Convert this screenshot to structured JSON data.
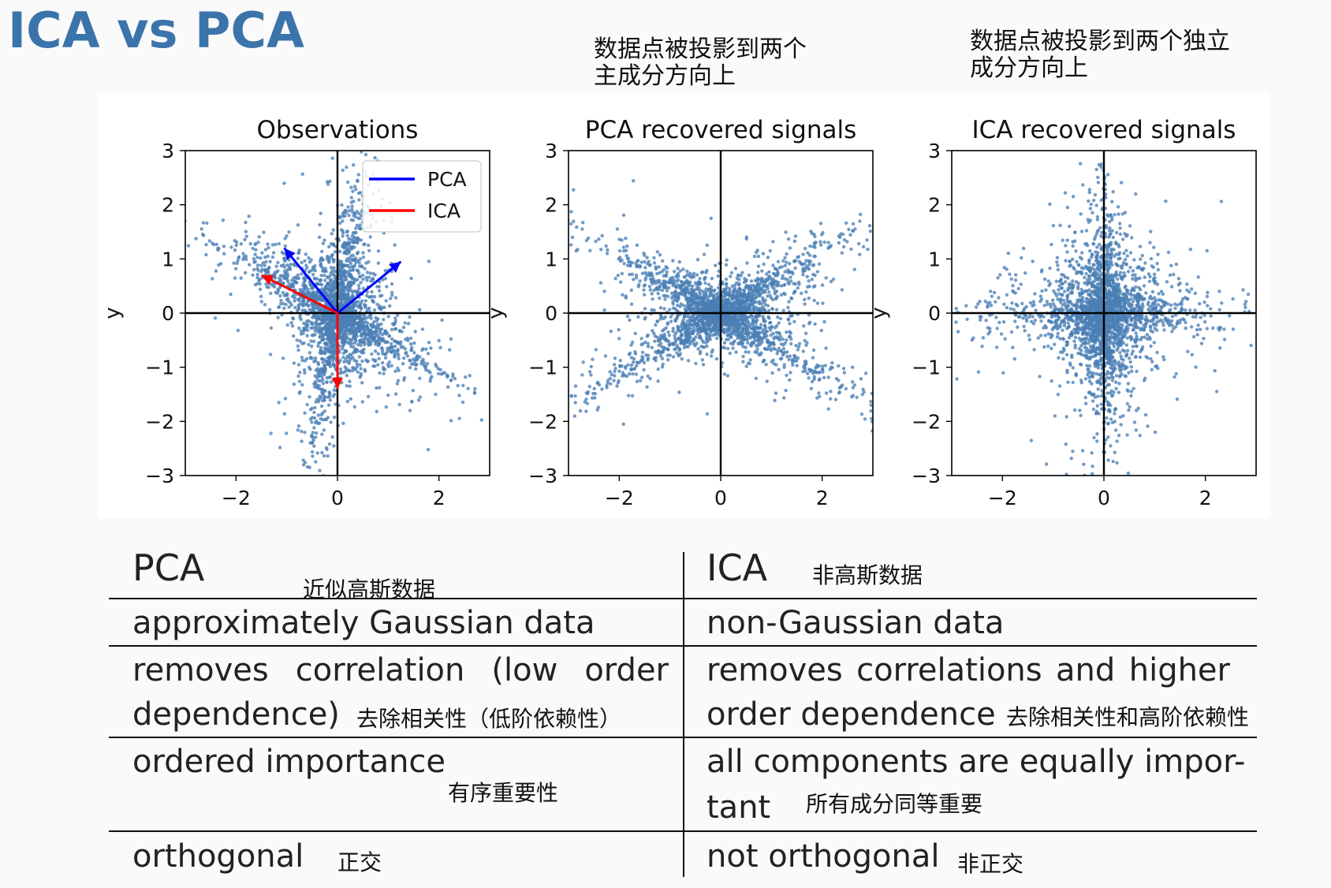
{
  "slide": {
    "title": "ICA vs PCA"
  },
  "notes": {
    "pca_line1": "数据点被投影到两个",
    "pca_line2": "主成分方向上",
    "ica_line1": "数据点被投影到两个独立",
    "ica_line2": "成分方向上"
  },
  "chart_data": [
    {
      "type": "scatter",
      "title": "Observations",
      "xlabel": "",
      "ylabel": "y",
      "xlim": [
        -3,
        3
      ],
      "ylim": [
        -3,
        3
      ],
      "xticks": [
        "−2",
        "0",
        "2"
      ],
      "yticks": [
        "3",
        "2",
        "1",
        "0",
        "−1",
        "−2",
        "−3"
      ],
      "point_color": "#4a7fb5",
      "shape": "rotated-cross",
      "legend": {
        "placement": "top-right",
        "entries": [
          {
            "name": "PCA",
            "color": "#0000ff"
          },
          {
            "name": "ICA",
            "color": "#ff0000"
          }
        ]
      },
      "vectors": [
        {
          "series": "PCA",
          "x": [
            -1.05,
            1.25
          ],
          "y": [
            1.2,
            0.95
          ]
        },
        {
          "series": "ICA",
          "x": [
            -1.5,
            0.0
          ],
          "y": [
            0.7,
            -1.4
          ]
        }
      ]
    },
    {
      "type": "scatter",
      "title": "PCA recovered signals",
      "xlabel": "",
      "ylabel": "y",
      "xlim": [
        -3,
        3
      ],
      "ylim": [
        -3,
        3
      ],
      "xticks": [
        "−2",
        "0",
        "2"
      ],
      "yticks": [
        "3",
        "2",
        "1",
        "0",
        "−1",
        "−2",
        "−3"
      ],
      "point_color": "#4a7fb5",
      "shape": "x-shape"
    },
    {
      "type": "scatter",
      "title": "ICA recovered signals",
      "xlabel": "",
      "ylabel": "y",
      "xlim": [
        -3,
        3
      ],
      "ylim": [
        -3,
        3
      ],
      "xticks": [
        "−2",
        "0",
        "2"
      ],
      "yticks": [
        "3",
        "2",
        "1",
        "0",
        "−1",
        "−2",
        "−3"
      ],
      "point_color": "#4a7fb5",
      "shape": "plus-cross"
    }
  ],
  "table": {
    "header": {
      "pca": "PCA",
      "pca_cn": "近似高斯数据",
      "ica": "ICA",
      "ica_cn": "非高斯数据"
    },
    "rows": [
      {
        "pca": "approximately Gaussian data",
        "ica": "non-Gaussian data"
      },
      {
        "pca_a": "removes correlation (low order",
        "pca_b": "dependence)",
        "pca_cn": "去除相关性（低阶依赖性）",
        "ica_a": "removes correlations and higher",
        "ica_b": "order dependence",
        "ica_cn": "去除相关性和高阶依赖性"
      },
      {
        "pca": "ordered importance",
        "pca_cn": "有序重要性",
        "ica_a": "all components are equally impor-",
        "ica_b": "tant",
        "ica_cn": "所有成分同等重要"
      },
      {
        "pca": "orthogonal",
        "pca_cn": "正交",
        "ica": "not orthogonal",
        "ica_cn": "非正交"
      }
    ]
  }
}
